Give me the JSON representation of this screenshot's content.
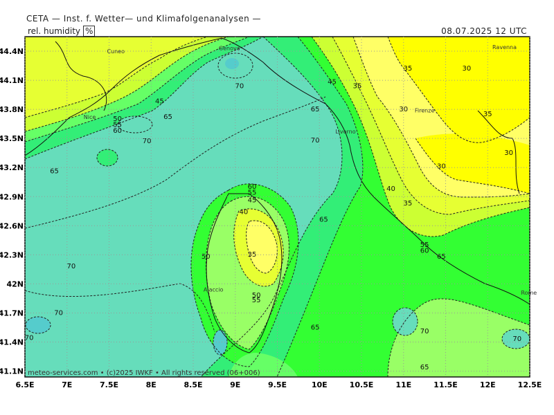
{
  "header": {
    "title": "CETA — Inst. f. Wetter— und Klimafolgenanalysen —",
    "parameter": "rel. humidity",
    "unit": "%",
    "datetime": "08.07.2025 12 UTC"
  },
  "footer": {
    "credit": "meteo-services.com • (c)2025 IWKF • All rights reserved (06+006)"
  },
  "colors": {
    "h30": "#ffff00",
    "h35": "#ffff66",
    "h40": "#e6ff33",
    "h45": "#ccff33",
    "h50": "#99ff66",
    "h55": "#66ff66",
    "h60": "#33ff33",
    "h65": "#33ee77",
    "h70": "#66ddbb",
    "h75": "#55cccc"
  },
  "axes": {
    "lon_ticks": [
      "6.5E",
      "7E",
      "7.5E",
      "8E",
      "8.5E",
      "9E",
      "9.5E",
      "10E",
      "10.5E",
      "11E",
      "11.5E",
      "12E",
      "12.5E"
    ],
    "lat_ticks": [
      "44.4N",
      "44.1N",
      "43.8N",
      "43.5N",
      "43.2N",
      "42.9N",
      "42.6N",
      "42.3N",
      "42N",
      "41.7N",
      "41.4N",
      "41.1N"
    ]
  },
  "cities": [
    {
      "name": "Cuneo",
      "lon": 7.58,
      "lat": 44.38
    },
    {
      "name": "Genova",
      "lon": 8.93,
      "lat": 44.41
    },
    {
      "name": "Ravenna",
      "lon": 12.2,
      "lat": 44.42
    },
    {
      "name": "Nice",
      "lon": 7.27,
      "lat": 43.7
    },
    {
      "name": "Firenze",
      "lon": 11.25,
      "lat": 43.77
    },
    {
      "name": "Livorno",
      "lon": 10.31,
      "lat": 43.55
    },
    {
      "name": "Ajaccio",
      "lon": 8.74,
      "lat": 41.92
    },
    {
      "name": "Rome",
      "lon": 12.49,
      "lat": 41.89
    }
  ],
  "contour_labels": [
    {
      "text": "70",
      "lon": 9.05,
      "lat": 44.02
    },
    {
      "text": "45",
      "lon": 8.1,
      "lat": 43.86
    },
    {
      "text": "65",
      "lon": 8.2,
      "lat": 43.7
    },
    {
      "text": "50",
      "lon": 7.6,
      "lat": 43.68
    },
    {
      "text": "55",
      "lon": 7.6,
      "lat": 43.62
    },
    {
      "text": "60",
      "lon": 7.6,
      "lat": 43.56
    },
    {
      "text": "70",
      "lon": 7.95,
      "lat": 43.45
    },
    {
      "text": "65",
      "lon": 6.85,
      "lat": 43.14
    },
    {
      "text": "70",
      "lon": 9.95,
      "lat": 43.46
    },
    {
      "text": "45",
      "lon": 10.15,
      "lat": 44.06
    },
    {
      "text": "35",
      "lon": 10.45,
      "lat": 44.02
    },
    {
      "text": "35",
      "lon": 11.05,
      "lat": 44.2
    },
    {
      "text": "30",
      "lon": 11.75,
      "lat": 44.2
    },
    {
      "text": "65",
      "lon": 9.95,
      "lat": 43.78
    },
    {
      "text": "30",
      "lon": 11.0,
      "lat": 43.78
    },
    {
      "text": "35",
      "lon": 12.0,
      "lat": 43.73
    },
    {
      "text": "30",
      "lon": 12.25,
      "lat": 43.33
    },
    {
      "text": "30",
      "lon": 11.45,
      "lat": 43.19
    },
    {
      "text": "40",
      "lon": 10.85,
      "lat": 42.96
    },
    {
      "text": "35",
      "lon": 11.05,
      "lat": 42.81
    },
    {
      "text": "60",
      "lon": 9.2,
      "lat": 42.98
    },
    {
      "text": "55",
      "lon": 9.2,
      "lat": 42.92
    },
    {
      "text": "45",
      "lon": 9.2,
      "lat": 42.84
    },
    {
      "text": "40",
      "lon": 9.1,
      "lat": 42.72
    },
    {
      "text": "65",
      "lon": 10.05,
      "lat": 42.64
    },
    {
      "text": "50",
      "lon": 8.65,
      "lat": 42.26
    },
    {
      "text": "35",
      "lon": 9.2,
      "lat": 42.28
    },
    {
      "text": "70",
      "lon": 7.05,
      "lat": 42.16
    },
    {
      "text": "50",
      "lon": 9.25,
      "lat": 41.86
    },
    {
      "text": "55",
      "lon": 9.25,
      "lat": 41.81
    },
    {
      "text": "70",
      "lon": 6.9,
      "lat": 41.68
    },
    {
      "text": "70",
      "lon": 6.55,
      "lat": 41.42
    },
    {
      "text": "65",
      "lon": 9.95,
      "lat": 41.53
    },
    {
      "text": "55",
      "lon": 11.25,
      "lat": 42.38
    },
    {
      "text": "60",
      "lon": 11.25,
      "lat": 42.32
    },
    {
      "text": "65",
      "lon": 11.45,
      "lat": 42.26
    },
    {
      "text": "70",
      "lon": 11.25,
      "lat": 41.49
    },
    {
      "text": "70",
      "lon": 12.35,
      "lat": 41.41
    },
    {
      "text": "65",
      "lon": 11.25,
      "lat": 41.12
    }
  ]
}
